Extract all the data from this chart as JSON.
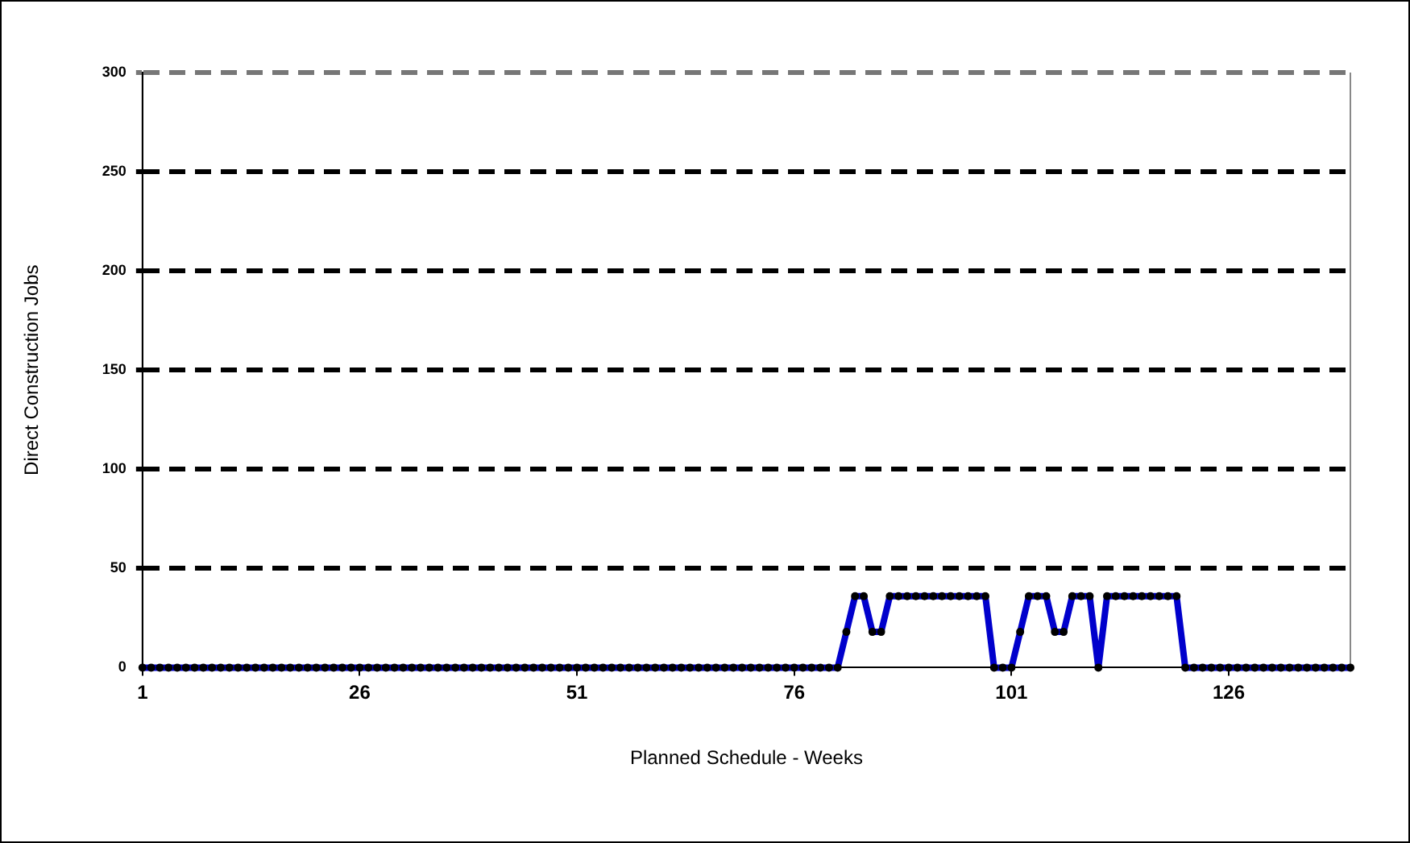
{
  "chart_data": {
    "type": "line",
    "xlabel": "Planned Schedule - Weeks",
    "ylabel": "Direct Construction Jobs",
    "x": [
      1,
      2,
      3,
      4,
      5,
      6,
      7,
      8,
      9,
      10,
      11,
      12,
      13,
      14,
      15,
      16,
      17,
      18,
      19,
      20,
      21,
      22,
      23,
      24,
      25,
      26,
      27,
      28,
      29,
      30,
      31,
      32,
      33,
      34,
      35,
      36,
      37,
      38,
      39,
      40,
      41,
      42,
      43,
      44,
      45,
      46,
      47,
      48,
      49,
      50,
      51,
      52,
      53,
      54,
      55,
      56,
      57,
      58,
      59,
      60,
      61,
      62,
      63,
      64,
      65,
      66,
      67,
      68,
      69,
      70,
      71,
      72,
      73,
      74,
      75,
      76,
      77,
      78,
      79,
      80,
      81,
      82,
      83,
      84,
      85,
      86,
      87,
      88,
      89,
      90,
      91,
      92,
      93,
      94,
      95,
      96,
      97,
      98,
      99,
      100,
      101,
      102,
      103,
      104,
      105,
      106,
      107,
      108,
      109,
      110,
      111,
      112,
      113,
      114,
      115,
      116,
      117,
      118,
      119,
      120,
      121,
      122,
      123,
      124,
      125,
      126,
      127,
      128,
      129,
      130,
      131,
      132,
      133,
      134,
      135,
      136,
      137,
      138,
      139,
      140
    ],
    "series": [
      {
        "color": "#0000cc",
        "values": [
          0,
          0,
          0,
          0,
          0,
          0,
          0,
          0,
          0,
          0,
          0,
          0,
          0,
          0,
          0,
          0,
          0,
          0,
          0,
          0,
          0,
          0,
          0,
          0,
          0,
          0,
          0,
          0,
          0,
          0,
          0,
          0,
          0,
          0,
          0,
          0,
          0,
          0,
          0,
          0,
          0,
          0,
          0,
          0,
          0,
          0,
          0,
          0,
          0,
          0,
          0,
          0,
          0,
          0,
          0,
          0,
          0,
          0,
          0,
          0,
          0,
          0,
          0,
          0,
          0,
          0,
          0,
          0,
          0,
          0,
          0,
          0,
          0,
          0,
          0,
          0,
          0,
          0,
          0,
          0,
          0,
          18,
          36,
          36,
          18,
          18,
          36,
          36,
          36,
          36,
          36,
          36,
          36,
          36,
          36,
          36,
          36,
          36,
          0,
          0,
          0,
          18,
          36,
          36,
          36,
          18,
          18,
          36,
          36,
          36,
          0,
          36,
          36,
          36,
          36,
          36,
          36,
          36,
          36,
          36,
          0,
          0,
          0,
          0,
          0,
          0,
          0,
          0,
          0,
          0,
          0,
          0,
          0,
          0,
          0,
          0,
          0,
          0,
          0,
          0
        ]
      }
    ],
    "xlim": [
      1,
      140
    ],
    "xticks": [
      1,
      26,
      51,
      76,
      101,
      126
    ],
    "ylim": [
      0,
      300
    ],
    "yticks": [
      0,
      50,
      100,
      150,
      200,
      250,
      300
    ],
    "grid": "y",
    "legend": false,
    "marker": "circle",
    "line_style": "solid"
  }
}
